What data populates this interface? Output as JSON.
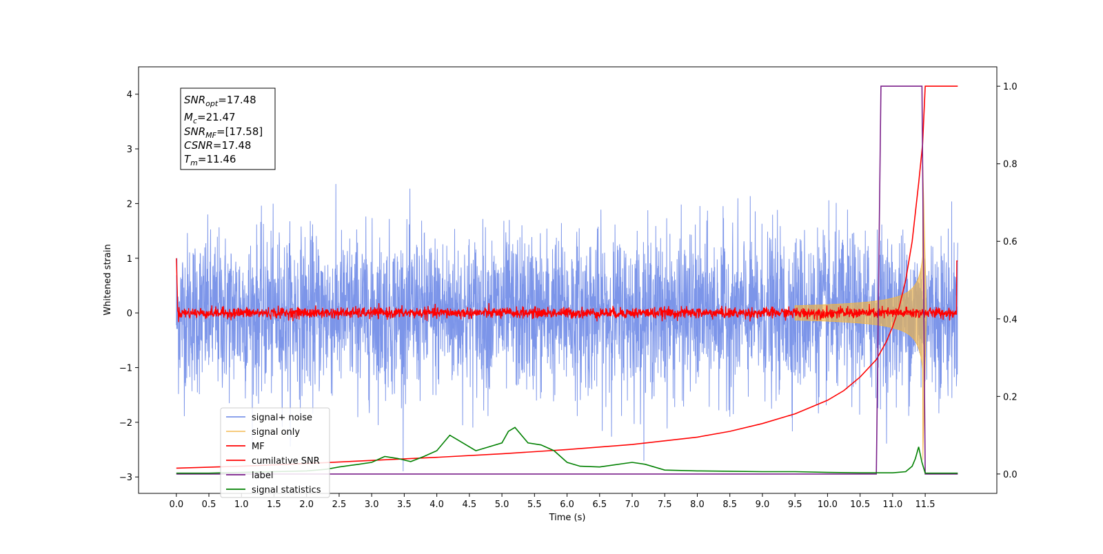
{
  "chart_data": {
    "type": "line",
    "xlabel": "Time (s)",
    "ylabel": "Whitened strain",
    "xlim": [
      -0.58,
      12.6
    ],
    "ylim": [
      -3.3,
      4.5
    ],
    "y2lim": [
      -0.05,
      1.05
    ],
    "x_ticks": [
      "0.0",
      "0.5",
      "1.0",
      "1.5",
      "2.0",
      "2.5",
      "3.0",
      "3.5",
      "4.0",
      "4.5",
      "5.0",
      "5.5",
      "6.0",
      "6.5",
      "7.0",
      "7.5",
      "8.0",
      "8.5",
      "9.0",
      "9.5",
      "10.0",
      "10.5",
      "11.0",
      "11.5"
    ],
    "y_ticks": [
      "−3",
      "−2",
      "−1",
      "0",
      "1",
      "2",
      "3",
      "4"
    ],
    "y2_ticks": [
      "0.0",
      "0.2",
      "0.4",
      "0.6",
      "0.8",
      "1.0"
    ],
    "grid": false,
    "legend_position": "lower-left",
    "info_box": {
      "snr_opt": {
        "main": "SNR",
        "sub": "opt",
        "value": "=17.48"
      },
      "mc": {
        "main": "M",
        "sub": "c",
        "value": "=21.47"
      },
      "snr_mf": {
        "main": "SNR",
        "sub": "MF",
        "value": "=[17.58]"
      },
      "csnr": {
        "main": "CSNR",
        "sub": "",
        "value": "=17.48"
      },
      "tm": {
        "main": "T",
        "sub": "m",
        "value": "=11.46"
      }
    },
    "series": [
      {
        "name": "signal+ noise",
        "color": "#5b7be3",
        "axis": "left",
        "kind": "noise",
        "amplitude_std": 0.72,
        "x_range": [
          0.0,
          12.0
        ]
      },
      {
        "name": "signal only",
        "color": "#f2b544",
        "axis": "left",
        "kind": "chirp",
        "peak_time": 11.46,
        "peak_amplitude": 2.9
      },
      {
        "name": "MF",
        "color": "#ff0000",
        "axis": "left",
        "kind": "noise",
        "amplitude_std": 0.05,
        "x_range": [
          0.0,
          12.0
        ]
      },
      {
        "name": "cumilative SNR",
        "color": "#ff0000",
        "axis": "right",
        "x": [
          0.0,
          1.0,
          2.0,
          3.0,
          4.0,
          5.0,
          6.0,
          7.0,
          8.0,
          8.5,
          9.0,
          9.5,
          10.0,
          10.25,
          10.5,
          10.75,
          10.9,
          11.0,
          11.1,
          11.2,
          11.3,
          11.4,
          11.46,
          11.5,
          12.0
        ],
        "values": [
          0.015,
          0.02,
          0.027,
          0.035,
          0.043,
          0.052,
          0.063,
          0.076,
          0.095,
          0.11,
          0.13,
          0.155,
          0.19,
          0.215,
          0.25,
          0.295,
          0.34,
          0.38,
          0.43,
          0.5,
          0.6,
          0.75,
          0.85,
          1.0,
          1.0
        ]
      },
      {
        "name": "label",
        "color": "#7a1f8a",
        "axis": "right",
        "x": [
          0.0,
          10.75,
          10.82,
          11.45,
          11.5,
          12.0
        ],
        "values": [
          0.0,
          0.0,
          1.0,
          1.0,
          0.0,
          0.0
        ]
      },
      {
        "name": "signal statistics",
        "color": "#008000",
        "axis": "right",
        "x": [
          0.0,
          0.5,
          1.0,
          1.5,
          2.0,
          2.3,
          2.5,
          2.8,
          3.0,
          3.2,
          3.4,
          3.6,
          3.8,
          4.0,
          4.2,
          4.4,
          4.6,
          4.8,
          5.0,
          5.1,
          5.2,
          5.4,
          5.6,
          5.8,
          6.0,
          6.2,
          6.5,
          7.0,
          7.2,
          7.5,
          8.0,
          8.5,
          9.0,
          9.5,
          10.0,
          10.5,
          11.0,
          11.2,
          11.3,
          11.35,
          11.4,
          11.45,
          11.5,
          12.0
        ],
        "values": [
          0.002,
          0.002,
          0.004,
          0.006,
          0.008,
          0.012,
          0.018,
          0.025,
          0.03,
          0.045,
          0.04,
          0.032,
          0.045,
          0.06,
          0.1,
          0.08,
          0.06,
          0.07,
          0.08,
          0.11,
          0.12,
          0.08,
          0.075,
          0.06,
          0.03,
          0.02,
          0.018,
          0.03,
          0.025,
          0.01,
          0.008,
          0.007,
          0.006,
          0.006,
          0.004,
          0.003,
          0.003,
          0.006,
          0.02,
          0.04,
          0.07,
          0.03,
          0.002,
          0.002
        ]
      }
    ]
  }
}
